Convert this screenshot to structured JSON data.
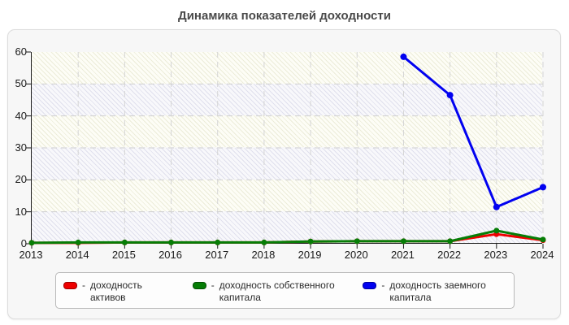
{
  "title": "Динамика показателей доходности",
  "legend": {
    "prefix": "-",
    "items": [
      {
        "label": "доходность активов",
        "color": "#ee0000",
        "border": "#a00000"
      },
      {
        "label": "доходность собственного капитала",
        "color": "#067d06",
        "border": "#034f03"
      },
      {
        "label": "доходность заемного капитала",
        "color": "#0202f0",
        "border": "#0000a0"
      }
    ]
  },
  "chart_data": {
    "type": "line",
    "title": "Динамика показателей доходности",
    "categories": [
      "2013",
      "2014",
      "2015",
      "2016",
      "2017",
      "2018",
      "2019",
      "2020",
      "2021",
      "2022",
      "2023",
      "2024"
    ],
    "series": [
      {
        "name": "доходность активов",
        "color": "#ee0000",
        "values": [
          0.3,
          0.3,
          0.4,
          0.4,
          0.4,
          0.4,
          0.7,
          0.8,
          0.8,
          0.8,
          3.0,
          1.1
        ]
      },
      {
        "name": "доходность собственного капитала",
        "color": "#067d06",
        "values": [
          0.3,
          0.4,
          0.4,
          0.4,
          0.4,
          0.4,
          0.7,
          0.8,
          0.8,
          0.8,
          4.1,
          1.3
        ]
      },
      {
        "name": "доходность заемного капитала",
        "color": "#0202f0",
        "values": [
          null,
          null,
          null,
          null,
          null,
          null,
          null,
          null,
          58.5,
          46.5,
          11.5,
          17.7
        ]
      }
    ],
    "xlabel": "",
    "ylabel": "",
    "ylim": [
      0,
      60
    ],
    "yticks": [
      0,
      10,
      20,
      30,
      40,
      50,
      60
    ],
    "grid": "dashed",
    "legend_position": "bottom"
  }
}
